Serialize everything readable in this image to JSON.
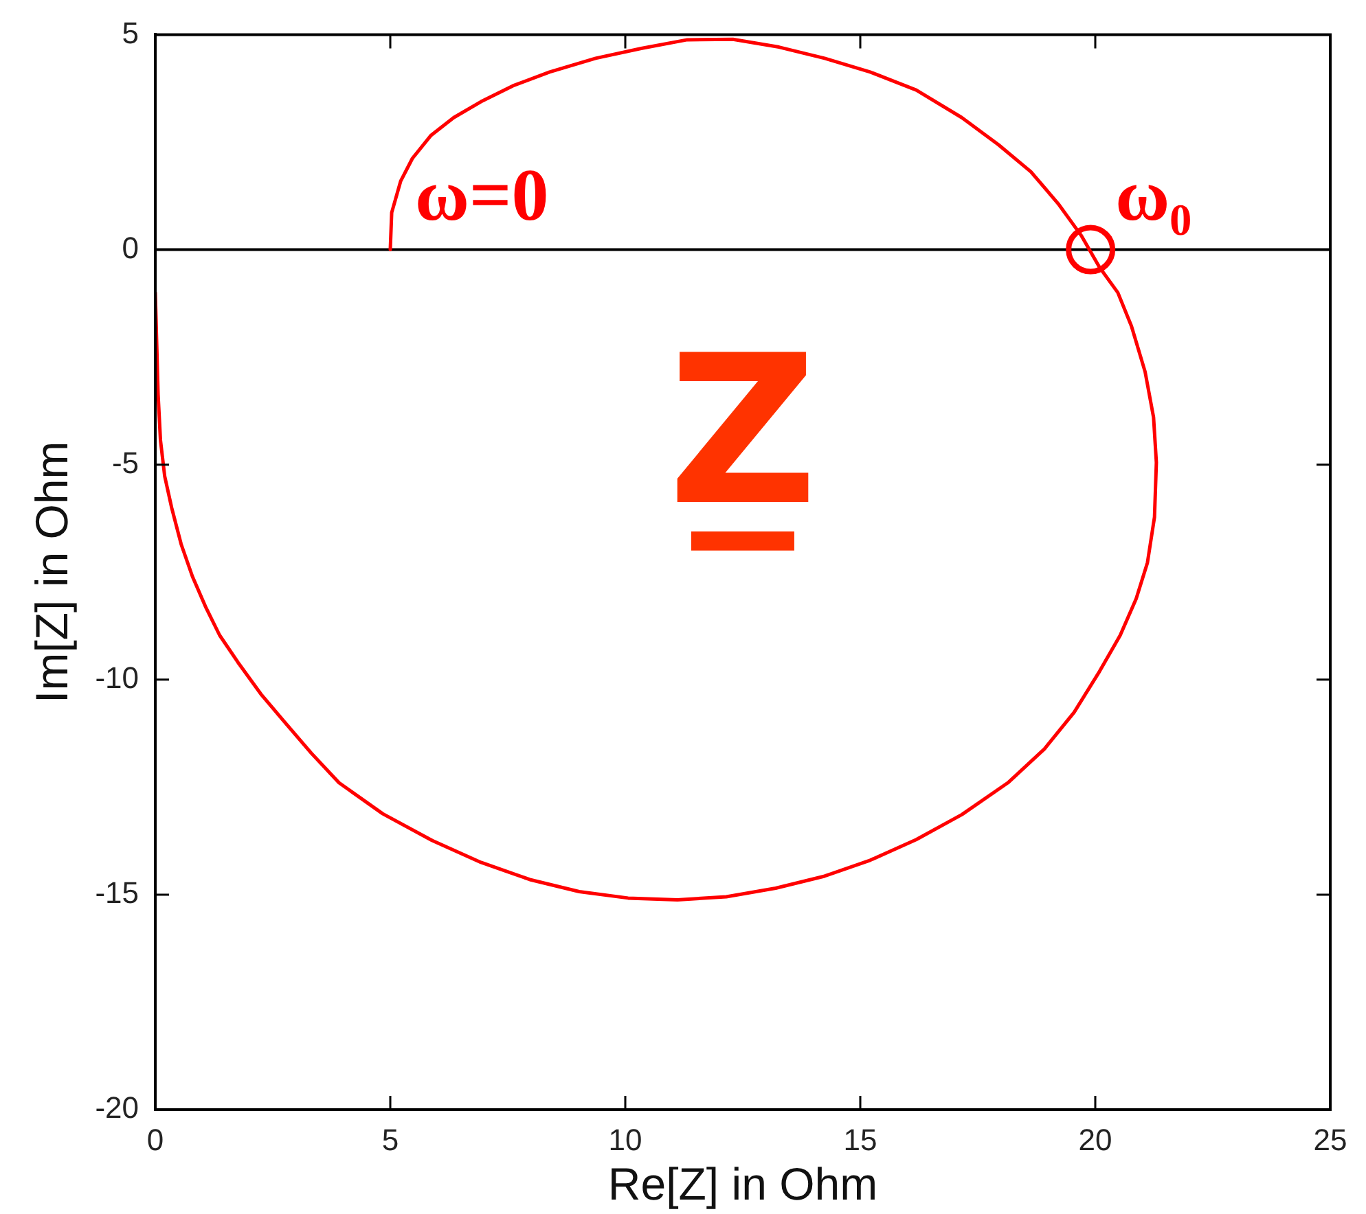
{
  "chart_data": {
    "type": "line",
    "xlabel": "Re[Z] in Ohm",
    "ylabel": "Im[Z] in Ohm",
    "xlim": [
      0,
      25
    ],
    "xticks": [
      0,
      5,
      10,
      15,
      20,
      25
    ],
    "ylim": [
      -20,
      5
    ],
    "yticks": [
      -20,
      -15,
      -10,
      -5,
      0,
      5
    ],
    "ref_lines": [
      {
        "axis": "y",
        "value": 0,
        "color": "#000000"
      }
    ],
    "annotations": [
      {
        "text": "ω=0",
        "x": 5,
        "y": 0
      },
      {
        "text": "ω₀",
        "x": 19.9,
        "y": 0
      },
      "Z̲"
    ],
    "series": [
      {
        "color": "#ff0000",
        "marker": "none",
        "x": [
          5,
          5.03,
          5.22,
          5.47,
          5.86,
          6.35,
          6.93,
          7.61,
          8.39,
          9.37,
          10.34,
          11.32,
          12.29,
          13.27,
          14.24,
          15.21,
          16.19,
          17.16,
          17.94,
          18.63,
          19.21,
          19.7,
          20.09,
          20.48,
          20.77,
          21.06,
          21.24,
          21.3,
          21.26,
          21.11,
          20.87,
          20.53,
          20.09,
          19.55,
          18.92,
          18.14,
          17.16,
          16.19,
          15.21,
          14.24,
          13.2,
          12.15,
          11.11,
          10.06,
          9.02,
          7.97,
          6.93,
          5.89,
          4.84,
          3.91,
          3.32,
          2.74,
          2.25,
          1.76,
          1.37,
          1.08,
          0.79,
          0.55,
          0.35,
          0.2,
          0.11,
          0.06,
          0
        ],
        "values": [
          0,
          0.86,
          1.59,
          2.12,
          2.65,
          3.07,
          3.44,
          3.81,
          4.13,
          4.45,
          4.68,
          4.88,
          4.89,
          4.71,
          4.45,
          4.13,
          3.71,
          3.07,
          2.44,
          1.81,
          1.07,
          0.33,
          -0.41,
          -1.0,
          -1.78,
          -2.84,
          -3.9,
          -4.95,
          -6.22,
          -7.28,
          -8.12,
          -8.97,
          -9.81,
          -10.76,
          -11.61,
          -12.4,
          -13.14,
          -13.72,
          -14.2,
          -14.57,
          -14.85,
          -15.05,
          -15.12,
          -15.08,
          -14.93,
          -14.65,
          -14.25,
          -13.74,
          -13.12,
          -12.4,
          -11.71,
          -10.97,
          -10.34,
          -9.6,
          -8.97,
          -8.33,
          -7.6,
          -6.85,
          -6.01,
          -5.27,
          -4.43,
          -3.37,
          -1.0
        ]
      },
      {
        "type": "scatter",
        "color": "#ff0000",
        "marker": "circle",
        "x": [
          19.9
        ],
        "values": [
          0
        ]
      }
    ]
  }
}
